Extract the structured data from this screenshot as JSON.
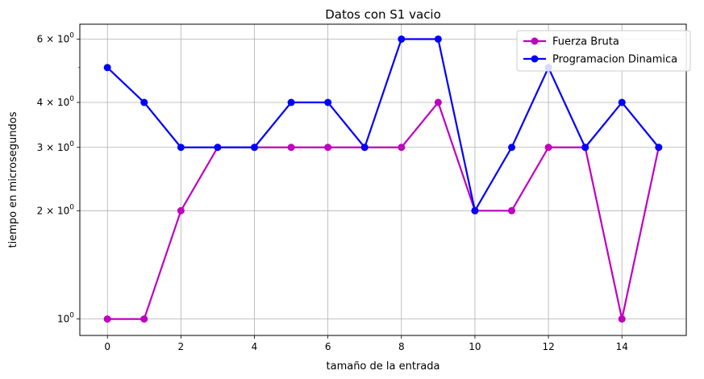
{
  "chart_data": {
    "type": "line",
    "title": "Datos con S1 vacio",
    "xlabel": "tamaño de la entrada",
    "ylabel": "tiempo en microsegundos",
    "yscale": "log",
    "grid": "vertical",
    "legend_position": "top-right",
    "xlim": [
      -0.75,
      15.75
    ],
    "ylim": [
      0.9,
      6.6
    ],
    "x_ticks": [
      0,
      2,
      4,
      6,
      8,
      10,
      12,
      14
    ],
    "y_ticks": [
      {
        "value": 1,
        "base": "10",
        "exp": "0",
        "mant": ""
      },
      {
        "value": 2,
        "base": "10",
        "exp": "0",
        "mant": "2 × "
      },
      {
        "value": 3,
        "base": "10",
        "exp": "0",
        "mant": "3 × "
      },
      {
        "value": 4,
        "base": "10",
        "exp": "0",
        "mant": "4 × "
      },
      {
        "value": 6,
        "base": "10",
        "exp": "0",
        "mant": "6 × "
      }
    ],
    "y_minor_ticks": [
      5
    ],
    "x": [
      0,
      1,
      2,
      3,
      4,
      5,
      6,
      7,
      8,
      9,
      10,
      11,
      12,
      13,
      14,
      15
    ],
    "series": [
      {
        "name": "Fuerza Bruta",
        "color": "#bf00bf",
        "values": [
          1,
          1,
          2,
          3,
          3,
          3,
          3,
          3,
          3,
          4,
          2,
          2,
          3,
          3,
          1,
          3
        ]
      },
      {
        "name": "Programacion Dinamica",
        "color": "#0000ff",
        "values": [
          5,
          4,
          3,
          3,
          3,
          4,
          4,
          3,
          6,
          6,
          2,
          3,
          5,
          3,
          4,
          3
        ]
      }
    ]
  }
}
